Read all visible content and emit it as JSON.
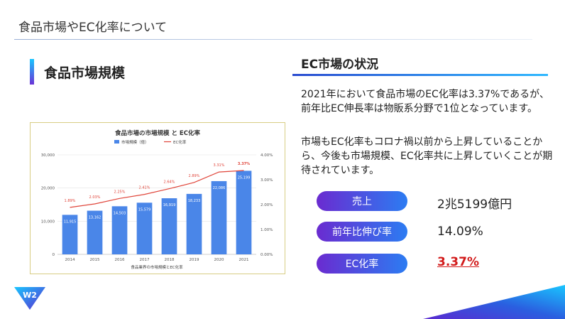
{
  "header": {
    "title": "食品市場やEC化率について"
  },
  "left_section": {
    "title": "食品市場規模"
  },
  "right_section": {
    "title": "EC市場の状況",
    "paragraph1": "2021年において食品市場のEC化率は3.37%であるが、前年比EC伸長率は物販系分野で1位となっています。",
    "paragraph2": "市場もEC化率もコロナ禍以前から上昇していることから、今後も市場規模、EC化率共に上昇していくことが期待されています。"
  },
  "metrics": [
    {
      "label": "売上",
      "value": "2兆5199億円"
    },
    {
      "label": "前年比伸び率",
      "value": "14.09%"
    },
    {
      "label": "EC化率",
      "value": "3.37%"
    }
  ],
  "logo": {
    "text": "W2"
  },
  "colors": {
    "bar": "#4a86e8",
    "line": "#e0453a",
    "accent_red": "#d21a1a"
  },
  "chart_data": {
    "type": "bar",
    "title": "食品市場の市場規模 と EC化率",
    "xlabel": "食品業界の市場規模とEC化率",
    "categories": [
      "2014",
      "2015",
      "2016",
      "2017",
      "2018",
      "2019",
      "2020",
      "2021"
    ],
    "series": [
      {
        "name": "市場規模（億）",
        "type": "bar",
        "axis": "left",
        "values": [
          11915,
          13162,
          14503,
          15579,
          16919,
          18233,
          22086,
          25199
        ],
        "labels": [
          "11,915",
          "13,162",
          "14,503",
          "15,579",
          "16,919",
          "18,233",
          "22,086",
          "25,199"
        ]
      },
      {
        "name": "EC化率",
        "type": "line",
        "axis": "right",
        "values": [
          1.89,
          2.03,
          2.25,
          2.41,
          2.64,
          2.89,
          3.31,
          3.37
        ],
        "labels": [
          "1.89%",
          "2.03%",
          "2.25%",
          "2.41%",
          "2.64%",
          "2.89%",
          "3.31%",
          "3.37%"
        ]
      }
    ],
    "ylim": [
      0,
      30000
    ],
    "y_ticks": [
      "0",
      "10,000",
      "20,000",
      "30,000"
    ],
    "y2lim": [
      0,
      4
    ],
    "y2_ticks": [
      "0.00%",
      "1.00%",
      "2.00%",
      "3.00%",
      "4.00%"
    ],
    "legend": "top-center",
    "grid": true
  }
}
